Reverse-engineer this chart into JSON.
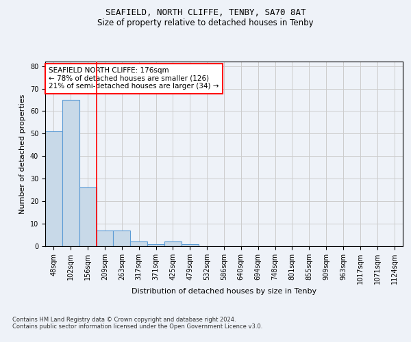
{
  "title": "SEAFIELD, NORTH CLIFFE, TENBY, SA70 8AT",
  "subtitle": "Size of property relative to detached houses in Tenby",
  "xlabel": "Distribution of detached houses by size in Tenby",
  "ylabel": "Number of detached properties",
  "footnote1": "Contains HM Land Registry data © Crown copyright and database right 2024.",
  "footnote2": "Contains public sector information licensed under the Open Government Licence v3.0.",
  "bins": [
    "48sqm",
    "102sqm",
    "156sqm",
    "209sqm",
    "263sqm",
    "317sqm",
    "371sqm",
    "425sqm",
    "479sqm",
    "532sqm",
    "586sqm",
    "640sqm",
    "694sqm",
    "748sqm",
    "801sqm",
    "855sqm",
    "909sqm",
    "963sqm",
    "1017sqm",
    "1071sqm",
    "1124sqm"
  ],
  "values": [
    51,
    65,
    26,
    7,
    7,
    2,
    1,
    2,
    1,
    0,
    0,
    0,
    0,
    0,
    0,
    0,
    0,
    0,
    0,
    0,
    0
  ],
  "bar_color": "#c8d9e8",
  "bar_edge_color": "#5b9bd5",
  "red_line_x": 2.5,
  "annotation_text": "SEAFIELD NORTH CLIFFE: 176sqm\n← 78% of detached houses are smaller (126)\n21% of semi-detached houses are larger (34) →",
  "annotation_box_color": "white",
  "annotation_box_edge_color": "red",
  "ylim": [
    0,
    82
  ],
  "yticks": [
    0,
    10,
    20,
    30,
    40,
    50,
    60,
    70,
    80
  ],
  "grid_color": "#cccccc",
  "background_color": "#eef2f8",
  "title_fontsize": 9,
  "subtitle_fontsize": 8.5,
  "annotation_fontsize": 7.5,
  "tick_fontsize": 7,
  "label_fontsize": 8,
  "footnote_fontsize": 6
}
